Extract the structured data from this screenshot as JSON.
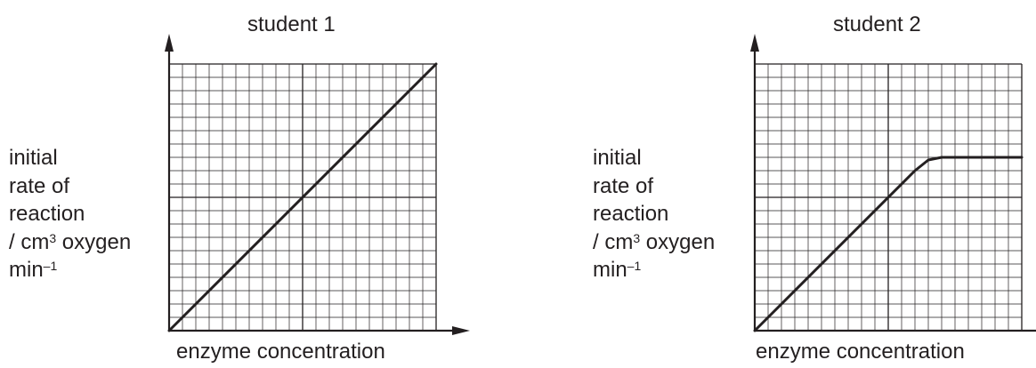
{
  "chart_data": [
    {
      "type": "line",
      "title": "student 1",
      "xlabel": "enzyme concentration",
      "ylabel_lines": [
        "initial",
        "rate of",
        "reaction",
        "/ cm",
        "3",
        " oxygen",
        "min",
        "–1"
      ],
      "grid": true,
      "xlim": [
        0,
        20
      ],
      "ylim": [
        0,
        20
      ],
      "series": [
        {
          "x": [
            0,
            20
          ],
          "y": [
            0,
            20
          ]
        }
      ]
    },
    {
      "type": "line",
      "title": "student 2",
      "xlabel": "enzyme concentration",
      "ylabel_lines": [
        "initial",
        "rate of",
        "reaction",
        "/ cm",
        "3",
        " oxygen",
        "min",
        "–1"
      ],
      "grid": true,
      "xlim": [
        0,
        20
      ],
      "ylim": [
        0,
        20
      ],
      "series": [
        {
          "x": [
            0,
            12,
            13,
            14,
            20
          ],
          "y": [
            0,
            12,
            12.8,
            13,
            13
          ]
        }
      ]
    }
  ]
}
